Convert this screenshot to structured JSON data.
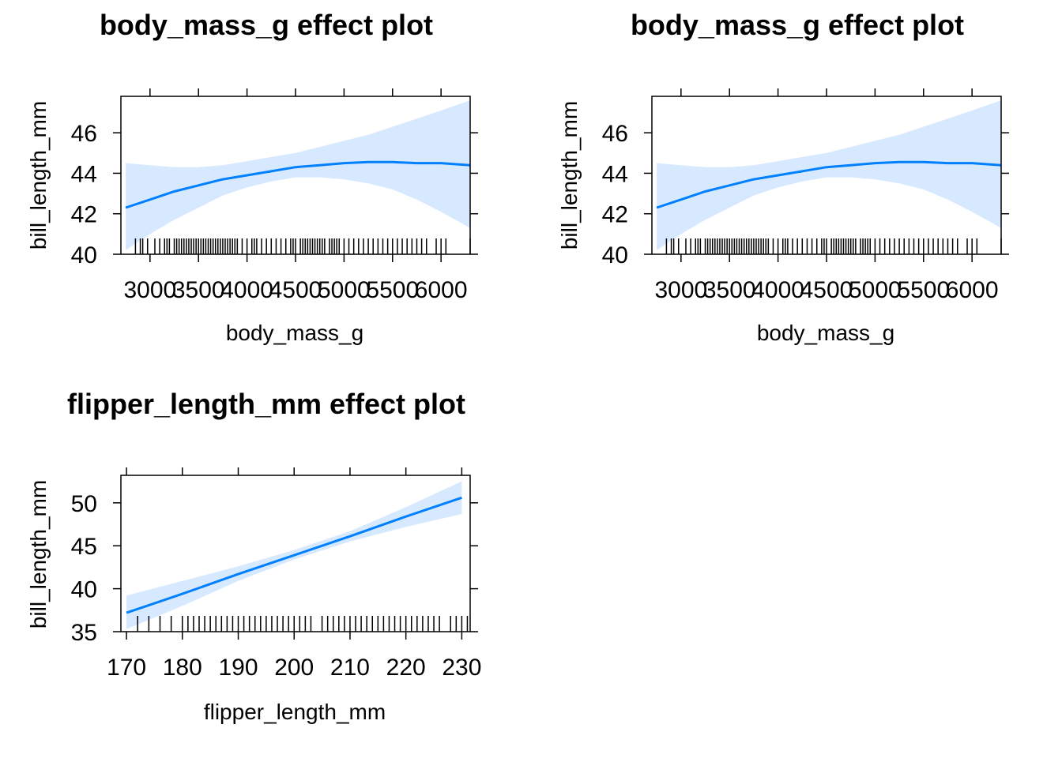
{
  "chart_data": [
    {
      "type": "line",
      "title": "body_mass_g effect plot",
      "xlabel": "body_mass_g",
      "ylabel": "bill_length_mm",
      "xlim": [
        2700,
        6300
      ],
      "ylim": [
        40,
        47.8
      ],
      "x_ticks": [
        3000,
        3500,
        4000,
        4500,
        5000,
        5500,
        6000
      ],
      "y_ticks": [
        40,
        42,
        44,
        46
      ],
      "x_tick_labels": [
        "3000",
        "3500",
        "4000",
        "4500",
        "5000",
        "5500",
        "6000"
      ],
      "y_tick_labels": [
        "40",
        "42",
        "44",
        "46"
      ],
      "fit": {
        "x": [
          2750,
          3000,
          3250,
          3500,
          3750,
          4000,
          4250,
          4500,
          4750,
          5000,
          5250,
          5500,
          5750,
          6000,
          6300
        ],
        "y": [
          42.3,
          42.7,
          43.1,
          43.4,
          43.7,
          43.9,
          44.1,
          44.3,
          44.4,
          44.5,
          44.55,
          44.55,
          44.5,
          44.5,
          44.4
        ]
      },
      "band": {
        "x": [
          2750,
          3000,
          3250,
          3500,
          3750,
          4000,
          4250,
          4500,
          4750,
          5000,
          5250,
          5500,
          5750,
          6000,
          6300
        ],
        "lower": [
          40.2,
          41.0,
          41.7,
          42.3,
          42.9,
          43.3,
          43.6,
          43.8,
          43.8,
          43.7,
          43.5,
          43.2,
          42.7,
          42.1,
          41.3
        ],
        "upper": [
          44.5,
          44.4,
          44.3,
          44.3,
          44.4,
          44.6,
          44.8,
          45.0,
          45.3,
          45.6,
          45.9,
          46.3,
          46.7,
          47.1,
          47.6
        ]
      },
      "rug": [
        2850,
        2900,
        2925,
        2975,
        3050,
        3100,
        3150,
        3175,
        3200,
        3250,
        3275,
        3300,
        3325,
        3350,
        3375,
        3400,
        3425,
        3450,
        3475,
        3500,
        3525,
        3550,
        3575,
        3600,
        3625,
        3650,
        3675,
        3700,
        3725,
        3750,
        3775,
        3800,
        3825,
        3850,
        3875,
        3900,
        3950,
        4000,
        4050,
        4075,
        4100,
        4150,
        4200,
        4250,
        4300,
        4350,
        4400,
        4450,
        4475,
        4500,
        4550,
        4575,
        4600,
        4625,
        4650,
        4675,
        4700,
        4725,
        4750,
        4775,
        4800,
        4850,
        4875,
        4900,
        4925,
        4950,
        5000,
        5050,
        5100,
        5150,
        5200,
        5250,
        5300,
        5350,
        5400,
        5450,
        5500,
        5550,
        5600,
        5650,
        5700,
        5750,
        5800,
        5850,
        5950,
        6000,
        6050,
        6300
      ]
    },
    {
      "type": "line",
      "title": "body_mass_g effect plot",
      "xlabel": "body_mass_g",
      "ylabel": "bill_length_mm",
      "xlim": [
        2700,
        6300
      ],
      "ylim": [
        40,
        47.8
      ],
      "x_ticks": [
        3000,
        3500,
        4000,
        4500,
        5000,
        5500,
        6000
      ],
      "y_ticks": [
        40,
        42,
        44,
        46
      ],
      "x_tick_labels": [
        "3000",
        "3500",
        "4000",
        "4500",
        "5000",
        "5500",
        "6000"
      ],
      "y_tick_labels": [
        "40",
        "42",
        "44",
        "46"
      ],
      "fit": {
        "x": [
          2750,
          3000,
          3250,
          3500,
          3750,
          4000,
          4250,
          4500,
          4750,
          5000,
          5250,
          5500,
          5750,
          6000,
          6300
        ],
        "y": [
          42.3,
          42.7,
          43.1,
          43.4,
          43.7,
          43.9,
          44.1,
          44.3,
          44.4,
          44.5,
          44.55,
          44.55,
          44.5,
          44.5,
          44.4
        ]
      },
      "band": {
        "x": [
          2750,
          3000,
          3250,
          3500,
          3750,
          4000,
          4250,
          4500,
          4750,
          5000,
          5250,
          5500,
          5750,
          6000,
          6300
        ],
        "lower": [
          40.2,
          41.0,
          41.7,
          42.3,
          42.9,
          43.3,
          43.6,
          43.8,
          43.8,
          43.7,
          43.5,
          43.2,
          42.7,
          42.1,
          41.3
        ],
        "upper": [
          44.5,
          44.4,
          44.3,
          44.3,
          44.4,
          44.6,
          44.8,
          45.0,
          45.3,
          45.6,
          45.9,
          46.3,
          46.7,
          47.1,
          47.6
        ]
      },
      "rug": [
        2850,
        2900,
        2925,
        2975,
        3050,
        3100,
        3150,
        3175,
        3200,
        3250,
        3275,
        3300,
        3325,
        3350,
        3375,
        3400,
        3425,
        3450,
        3475,
        3500,
        3525,
        3550,
        3575,
        3600,
        3625,
        3650,
        3675,
        3700,
        3725,
        3750,
        3775,
        3800,
        3825,
        3850,
        3875,
        3900,
        3950,
        4000,
        4050,
        4075,
        4100,
        4150,
        4200,
        4250,
        4300,
        4350,
        4400,
        4450,
        4475,
        4500,
        4550,
        4575,
        4600,
        4625,
        4650,
        4675,
        4700,
        4725,
        4750,
        4775,
        4800,
        4850,
        4875,
        4900,
        4925,
        4950,
        5000,
        5050,
        5100,
        5150,
        5200,
        5250,
        5300,
        5350,
        5400,
        5450,
        5500,
        5550,
        5600,
        5650,
        5700,
        5750,
        5800,
        5850,
        5950,
        6000,
        6050,
        6300
      ]
    },
    {
      "type": "line",
      "title": "flipper_length_mm effect plot",
      "xlabel": "flipper_length_mm",
      "ylabel": "bill_length_mm",
      "xlim": [
        169,
        231.5
      ],
      "ylim": [
        35,
        53.2
      ],
      "x_ticks": [
        170,
        180,
        190,
        200,
        210,
        220,
        230
      ],
      "y_ticks": [
        35,
        40,
        45,
        50
      ],
      "x_tick_labels": [
        "170",
        "180",
        "190",
        "200",
        "210",
        "220",
        "230"
      ],
      "y_tick_labels": [
        "35",
        "40",
        "45",
        "50"
      ],
      "fit": {
        "x": [
          170,
          180,
          190,
          200,
          210,
          220,
          230
        ],
        "y": [
          37.2,
          39.4,
          41.7,
          43.9,
          46.1,
          48.4,
          50.6
        ]
      },
      "band": {
        "x": [
          170,
          180,
          190,
          200,
          210,
          220,
          230
        ],
        "lower": [
          35.3,
          38.0,
          40.9,
          43.4,
          45.5,
          47.2,
          48.7
        ],
        "upper": [
          39.2,
          40.9,
          42.6,
          44.5,
          46.7,
          49.5,
          52.5
        ]
      },
      "rug": [
        172,
        174,
        176,
        178,
        180,
        181,
        182,
        183,
        184,
        185,
        186,
        187,
        188,
        189,
        190,
        191,
        192,
        193,
        194,
        195,
        196,
        197,
        198,
        199,
        200,
        201,
        202,
        203,
        205,
        206,
        207,
        208,
        209,
        210,
        211,
        212,
        213,
        214,
        215,
        216,
        217,
        218,
        219,
        220,
        221,
        222,
        223,
        224,
        225,
        226,
        228,
        229,
        230,
        231
      ]
    }
  ],
  "colors": {
    "line": "#0080ff",
    "band": "#d7e9ff",
    "axis": "#000000"
  }
}
